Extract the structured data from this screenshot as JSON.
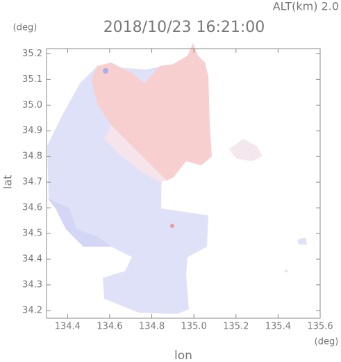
{
  "chart_data": {
    "type": "image",
    "title": "2018/10/23 16:21:00",
    "subtitle": "ALT(km) 2.0",
    "ylabel": "lat",
    "yunit": "(deg)",
    "xlabel": "lon",
    "xunit": "(deg)",
    "xlim": [
      134.3,
      135.6
    ],
    "ylim": [
      34.17,
      35.22
    ],
    "xticks": [
      134.4,
      134.6,
      134.8,
      {
        "value": 135,
        "label": "135.0"
      },
      135.2,
      135.4,
      135.6
    ],
    "yticks": [
      {
        "value": 34.2,
        "label": "34.2"
      },
      34.3,
      34.4,
      34.5,
      34.6,
      34.7,
      34.8,
      34.9,
      {
        "value": 35,
        "label": "35.0"
      },
      35.1,
      35.2
    ]
  }
}
